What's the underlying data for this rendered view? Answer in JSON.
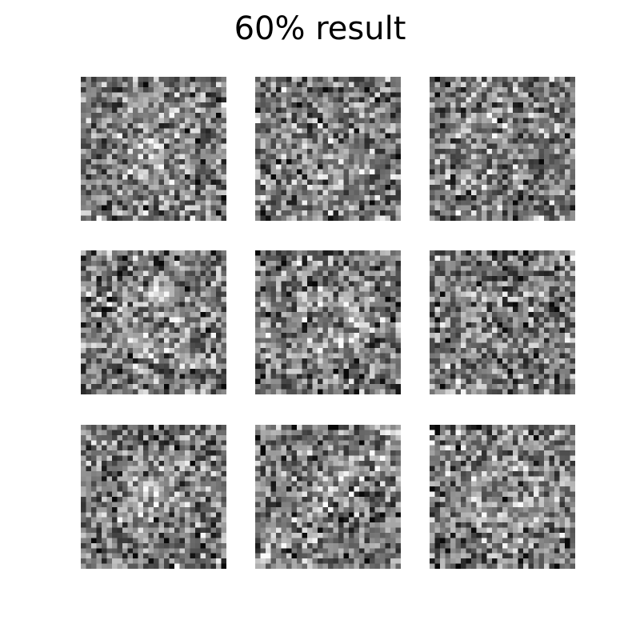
{
  "title": "60% result",
  "panels": [
    {
      "seed": 11,
      "glow": "center"
    },
    {
      "seed": 23,
      "glow": "lower"
    },
    {
      "seed": 37,
      "glow": "faint"
    },
    {
      "seed": 41,
      "glow": "ring"
    },
    {
      "seed": 53,
      "glow": "ring"
    },
    {
      "seed": 67,
      "glow": "left"
    },
    {
      "seed": 79,
      "glow": "center"
    },
    {
      "seed": 83,
      "glow": "diagonal"
    },
    {
      "seed": 97,
      "glow": "ring"
    }
  ],
  "panel_pixels": 28,
  "colors": {
    "background": "#ffffff",
    "text": "#000000",
    "colormap": "gray"
  }
}
